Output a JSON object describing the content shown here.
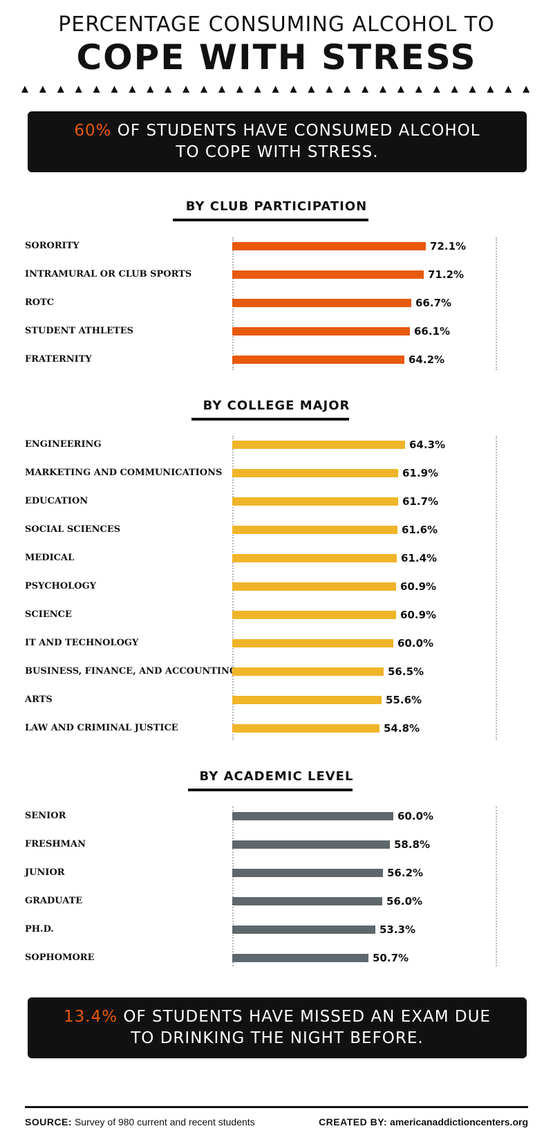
{
  "title": {
    "line1": "PERCENTAGE CONSUMING ALCOHOL TO",
    "line2": "COPE WITH STRESS"
  },
  "banner_top": {
    "highlight": "60%",
    "text1": " OF STUDENTS HAVE CONSUMED ALCOHOL",
    "text2": "TO COPE WITH STRESS."
  },
  "banner_bottom": {
    "highlight": "13.4%",
    "text1": " OF STUDENTS HAVE MISSED AN EXAM DUE",
    "text2": "TO DRINKING THE NIGHT BEFORE."
  },
  "footer": {
    "source_label": "SOURCE:",
    "source_text": " Survey of 980 current and recent students",
    "created_label": "CREATED BY:",
    "created_text": " americanaddictioncenters.org"
  },
  "colors": {
    "accent": "#e8590c",
    "club": "#e8590c",
    "major": "#f0b428",
    "academic": "#5f676c",
    "banner_bg": "#111111"
  },
  "chart_data": [
    {
      "type": "bar",
      "orientation": "horizontal",
      "title": "BY CLUB PARTICIPATION",
      "categories": [
        "SORORITY",
        "INTRAMURAL OR CLUB SPORTS",
        "ROTC",
        "STUDENT ATHLETES",
        "FRATERNITY"
      ],
      "values": [
        72.1,
        71.2,
        66.7,
        66.1,
        64.2
      ],
      "labels": [
        "72.1%",
        "71.2%",
        "66.7%",
        "66.1%",
        "64.2%"
      ],
      "color": "#e8590c",
      "unit": "%"
    },
    {
      "type": "bar",
      "orientation": "horizontal",
      "title": "BY COLLEGE MAJOR",
      "categories": [
        "ENGINEERING",
        "MARKETING AND COMMUNICATIONS",
        "EDUCATION",
        "SOCIAL SCIENCES",
        "MEDICAL",
        "PSYCHOLOGY",
        "SCIENCE",
        "IT AND TECHNOLOGY",
        "BUSINESS, FINANCE, AND ACCOUNTING",
        "ARTS",
        "LAW AND CRIMINAL JUSTICE"
      ],
      "values": [
        64.3,
        61.9,
        61.7,
        61.6,
        61.4,
        60.9,
        60.9,
        60.0,
        56.5,
        55.6,
        54.8
      ],
      "labels": [
        "64.3%",
        "61.9%",
        "61.7%",
        "61.6%",
        "61.4%",
        "60.9%",
        "60.9%",
        "60.0%",
        "56.5%",
        "55.6%",
        "54.8%"
      ],
      "color": "#f0b428",
      "unit": "%"
    },
    {
      "type": "bar",
      "orientation": "horizontal",
      "title": "BY ACADEMIC LEVEL",
      "categories": [
        "SENIOR",
        "FRESHMAN",
        "JUNIOR",
        "GRADUATE",
        "PH.D.",
        "SOPHOMORE"
      ],
      "values": [
        60.0,
        58.8,
        56.2,
        56.0,
        53.3,
        50.7
      ],
      "labels": [
        "60.0%",
        "58.8%",
        "56.2%",
        "56.0%",
        "53.3%",
        "50.7%"
      ],
      "color": "#5f676c",
      "unit": "%"
    }
  ]
}
